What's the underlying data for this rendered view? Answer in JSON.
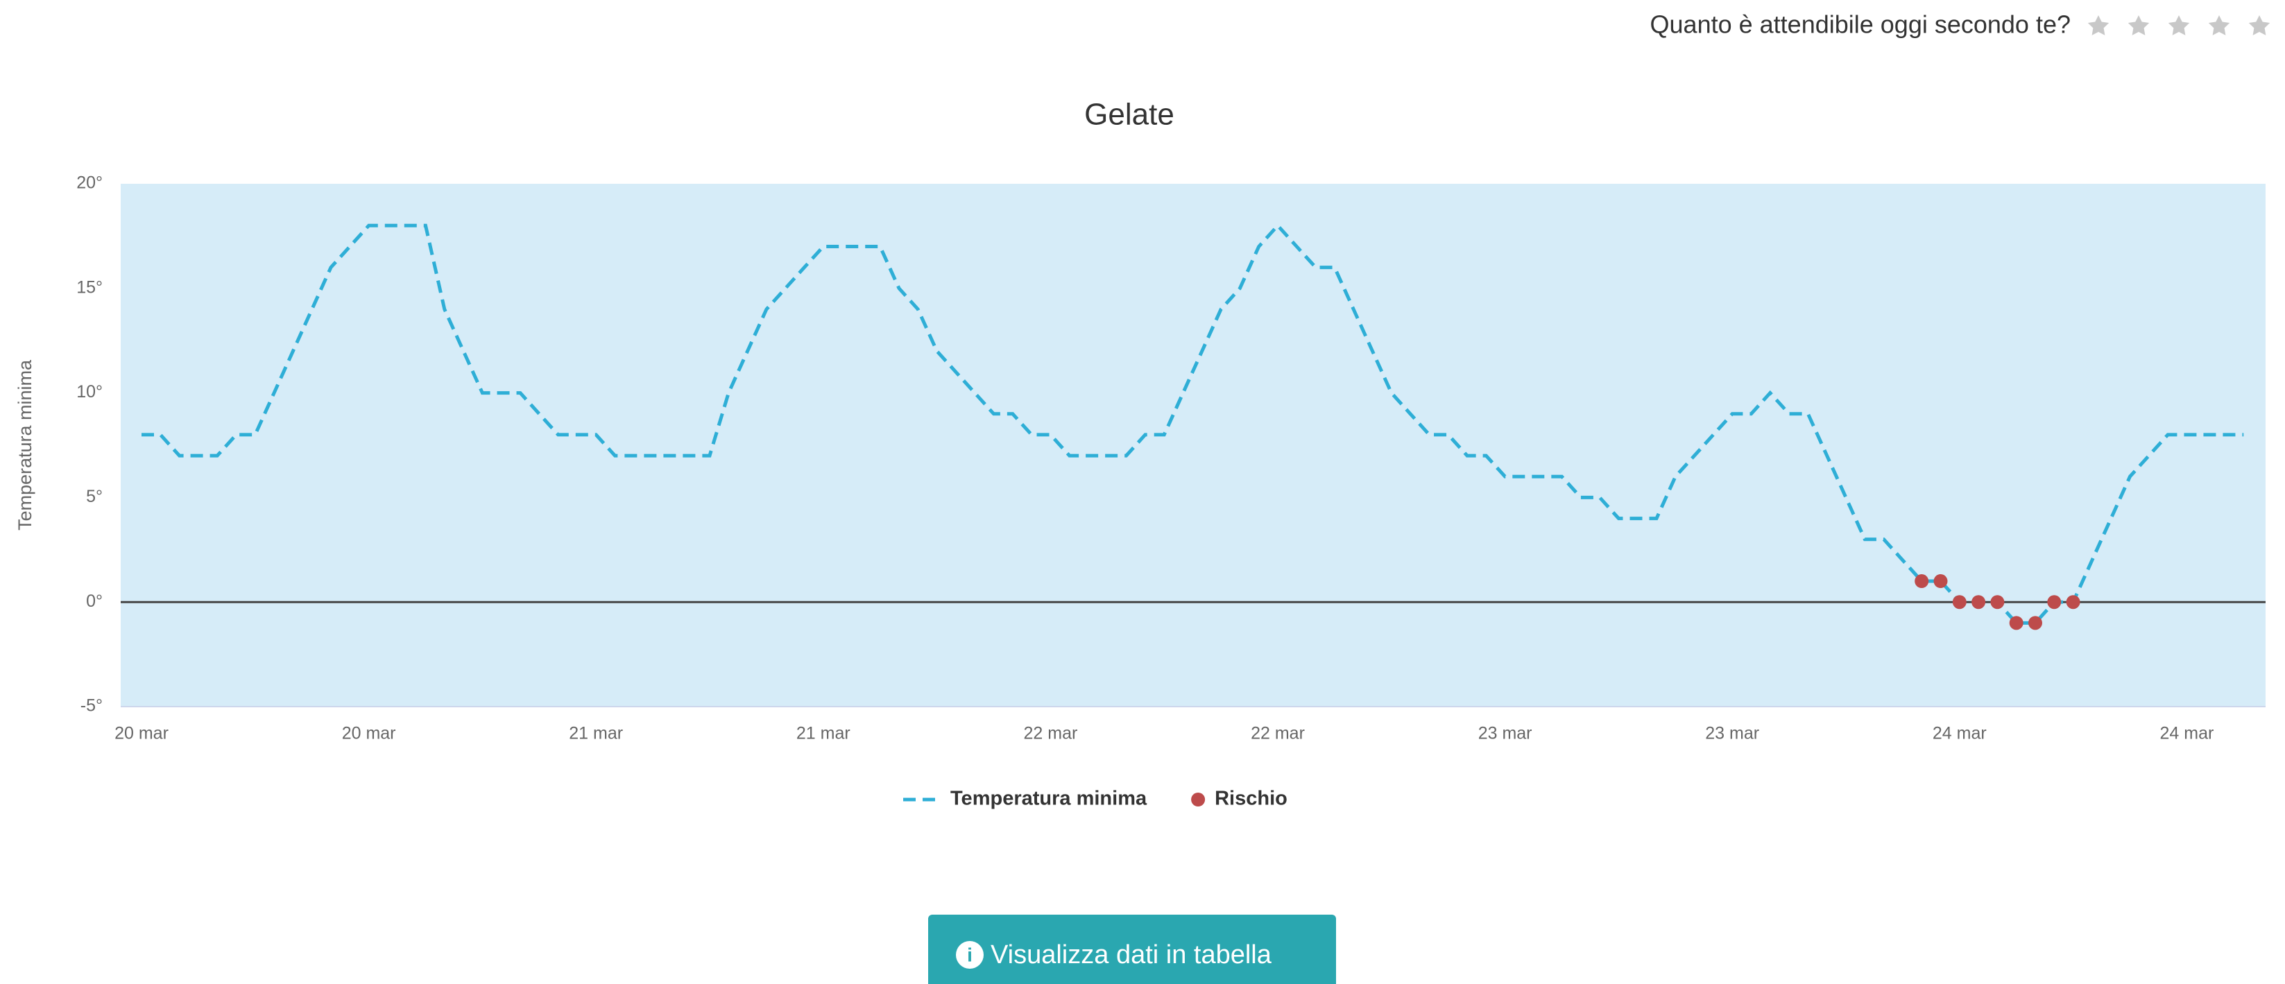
{
  "header": {
    "question": "Quanto è attendibile oggi secondo te?"
  },
  "chart_data": {
    "type": "line",
    "title": "Gelate",
    "y_label": "Temperatura minima",
    "categories": [
      "20 mar",
      null,
      null,
      null,
      null,
      null,
      null,
      null,
      null,
      null,
      null,
      null,
      "20 mar",
      null,
      null,
      null,
      null,
      null,
      null,
      null,
      null,
      null,
      null,
      null,
      "21 mar",
      null,
      null,
      null,
      null,
      null,
      null,
      null,
      null,
      null,
      null,
      null,
      "21 mar",
      null,
      null,
      null,
      null,
      null,
      null,
      null,
      null,
      null,
      null,
      null,
      "22 mar",
      null,
      null,
      null,
      null,
      null,
      null,
      null,
      null,
      null,
      null,
      null,
      "22 mar",
      null,
      null,
      null,
      null,
      null,
      null,
      null,
      null,
      null,
      null,
      null,
      "23 mar",
      null,
      null,
      null,
      null,
      null,
      null,
      null,
      null,
      null,
      null,
      null,
      "23 mar",
      null,
      null,
      null,
      null,
      null,
      null,
      null,
      null,
      null,
      null,
      null,
      "24 mar",
      null,
      null,
      null,
      null,
      null,
      null,
      null,
      null,
      null,
      null,
      null,
      "24 mar",
      null,
      null,
      null
    ],
    "series": [
      {
        "name": "Temperatura minima",
        "color": "#2eaed6",
        "style": "dashed",
        "values": [
          8,
          8,
          7,
          7,
          7,
          8,
          8,
          10,
          12,
          14,
          16,
          17,
          18,
          18,
          18,
          18,
          14,
          12,
          10,
          10,
          10,
          9,
          8,
          8,
          8,
          7,
          7,
          7,
          7,
          7,
          7,
          10,
          12,
          14,
          15,
          16,
          17,
          17,
          17,
          17,
          15,
          14,
          12,
          11,
          10,
          9,
          9,
          8,
          8,
          7,
          7,
          7,
          7,
          8,
          8,
          10,
          12,
          14,
          15,
          17,
          18,
          17,
          16,
          16,
          14,
          12,
          10,
          9,
          8,
          8,
          7,
          7,
          6,
          6,
          6,
          6,
          5,
          5,
          4,
          4,
          4,
          6,
          7,
          8,
          9,
          9,
          10,
          9,
          9,
          7,
          5,
          3,
          3,
          2,
          1,
          1,
          0,
          0,
          0,
          -1,
          -1,
          0,
          0,
          2,
          4,
          6,
          7,
          8,
          8,
          8,
          8,
          8
        ]
      },
      {
        "name": "Rischio",
        "color": "#bd4b4b",
        "style": "markers",
        "values": [
          null,
          null,
          null,
          null,
          null,
          null,
          null,
          null,
          null,
          null,
          null,
          null,
          null,
          null,
          null,
          null,
          null,
          null,
          null,
          null,
          null,
          null,
          null,
          null,
          null,
          null,
          null,
          null,
          null,
          null,
          null,
          null,
          null,
          null,
          null,
          null,
          null,
          null,
          null,
          null,
          null,
          null,
          null,
          null,
          null,
          null,
          null,
          null,
          null,
          null,
          null,
          null,
          null,
          null,
          null,
          null,
          null,
          null,
          null,
          null,
          null,
          null,
          null,
          null,
          null,
          null,
          null,
          null,
          null,
          null,
          null,
          null,
          null,
          null,
          null,
          null,
          null,
          null,
          null,
          null,
          null,
          null,
          null,
          null,
          null,
          null,
          null,
          null,
          null,
          null,
          null,
          null,
          null,
          null,
          1,
          1,
          0,
          0,
          0,
          -1,
          -1,
          0,
          0,
          null,
          null,
          null,
          null,
          null,
          null,
          null,
          null,
          null
        ]
      }
    ],
    "ylim": [
      -5,
      20
    ],
    "yticks": [
      {
        "value": -5,
        "label": "-5°"
      },
      {
        "value": 0,
        "label": "0°"
      },
      {
        "value": 5,
        "label": "5°"
      },
      {
        "value": 10,
        "label": "10°"
      },
      {
        "value": 15,
        "label": "15°"
      },
      {
        "value": 20,
        "label": "20°"
      }
    ],
    "background": "#d6ecf8",
    "legend": "bottom"
  },
  "button": {
    "label": "Visualizza dati in tabella"
  }
}
